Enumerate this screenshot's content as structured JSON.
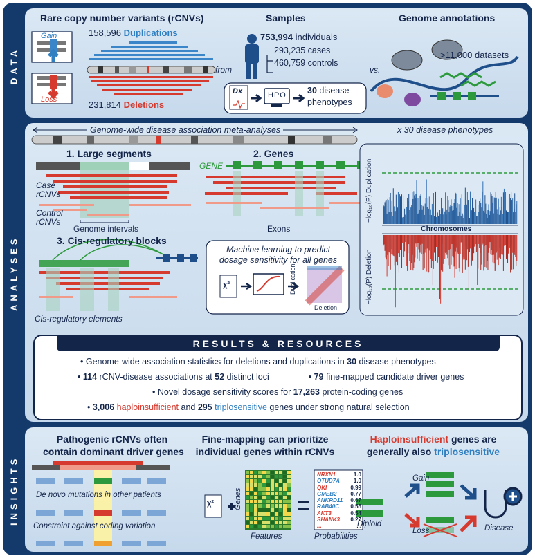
{
  "side_labels": {
    "data": "DATA",
    "analyses": "ANALYSES",
    "insights": "INSIGHTS"
  },
  "data_panel": {
    "rcnv_title": "Rare copy number variants (rCNVs)",
    "gain_label": "Gain",
    "loss_label": "Loss",
    "dup_count": "158,596",
    "dup_label": "Duplications",
    "del_count": "231,814",
    "del_label": "Deletions",
    "samples_title": "Samples",
    "individuals_count": "753,994",
    "individuals_label": "individuals",
    "cases": "293,235 cases",
    "controls": "460,759 controls",
    "from_label": "from",
    "dx_label": "Dx",
    "hpo_label": "HPO",
    "disease_count": "30",
    "disease_label_1": "disease",
    "disease_label_2": "phenotypes",
    "vs_label": "vs.",
    "annotations_title": "Genome annotations",
    "datasets": ">11,000 datasets"
  },
  "analyses_panel": {
    "meta_title": "Genome-wide disease association meta-analyses",
    "phenotypes_note": "x 30 disease phenotypes",
    "segments_title": "1. Large segments",
    "case_label_1": "Case",
    "case_label_2": "rCNVs",
    "control_label_1": "Control",
    "control_label_2": "rCNVs",
    "intervals_label": "Genome intervals",
    "genes_title": "2. Genes",
    "gene_label": "GENE",
    "exons_label": "Exons",
    "cis_title": "3. Cis-regulatory blocks",
    "cis_elements": "Cis-regulatory elements",
    "ml_text_1": "Machine learning to predict",
    "ml_text_2": "dosage sensitivity for all genes",
    "ml_chi": "χ²",
    "ml_y": "Duplication",
    "ml_x": "Deletion",
    "dup_axis": "−log₁₀(P) Duplication",
    "del_axis": "−log₁₀(P) Deletion",
    "chrom_label": "Chromosomes"
  },
  "results": {
    "title": "RESULTS & RESOURCES",
    "line1_a": "• Genome-wide association statistics for deletions and duplications in ",
    "line1_b": "30",
    "line1_c": " disease phenotypes",
    "line2_a": "• ",
    "line2_b": "114",
    "line2_c": " rCNV-disease associations at ",
    "line2_d": "52",
    "line2_e": " distinct loci",
    "line2_f": "• ",
    "line2_g": "79",
    "line2_h": " fine-mapped candidate driver genes",
    "line3_a": "• Novel dosage sensitivity scores for ",
    "line3_b": "17,263",
    "line3_c": " protein-coding genes",
    "line4_a": "• ",
    "line4_b": "3,006",
    "line4_c": " haploinsufficient",
    "line4_d": " and ",
    "line4_e": "295",
    "line4_f": " triplosensitive",
    "line4_g": " genes under strong natural selection"
  },
  "insights": {
    "i1_title_1": "Pathogenic rCNVs often",
    "i1_title_2": "contain dominant driver genes",
    "i1_denovo": "De novo mutations in other patients",
    "i1_constraint": "Constraint against coding variation",
    "i2_title_1": "Fine-mapping can prioritize",
    "i2_title_2": "individual genes within rCNVs",
    "i2_genes": "Genes",
    "i2_features": "Features",
    "i2_probabilities": "Probabilities",
    "i2_chi": "χ²",
    "genes_list": [
      {
        "name": "NRXN1",
        "p": "1.0",
        "color": "#d63a2f"
      },
      {
        "name": "OTUD7A",
        "p": "1.0",
        "color": "#2f7fc1"
      },
      {
        "name": "QKI",
        "p": "0.99",
        "color": "#d63a2f"
      },
      {
        "name": "GMEB2",
        "p": "0.77",
        "color": "#2f7fc1"
      },
      {
        "name": "ANKRD11",
        "p": "0.67",
        "color": "#2f7fc1"
      },
      {
        "name": "RAB40C",
        "p": "0.55",
        "color": "#2f7fc1"
      },
      {
        "name": "AKT3",
        "p": "0.54",
        "color": "#d63a2f"
      },
      {
        "name": "SHANK3",
        "p": "0.27",
        "color": "#d63a2f"
      },
      {
        "name": "...",
        "p": "...",
        "color": "#d63a2f"
      }
    ],
    "i3_title_a": "Haploinsufficient",
    "i3_title_b": " genes are",
    "i3_title_c": "generally also ",
    "i3_title_d": "triplosensitive",
    "i3_gain": "Gain",
    "i3_loss": "Loss",
    "i3_diploid": "Diploid",
    "i3_disease": "Disease"
  }
}
